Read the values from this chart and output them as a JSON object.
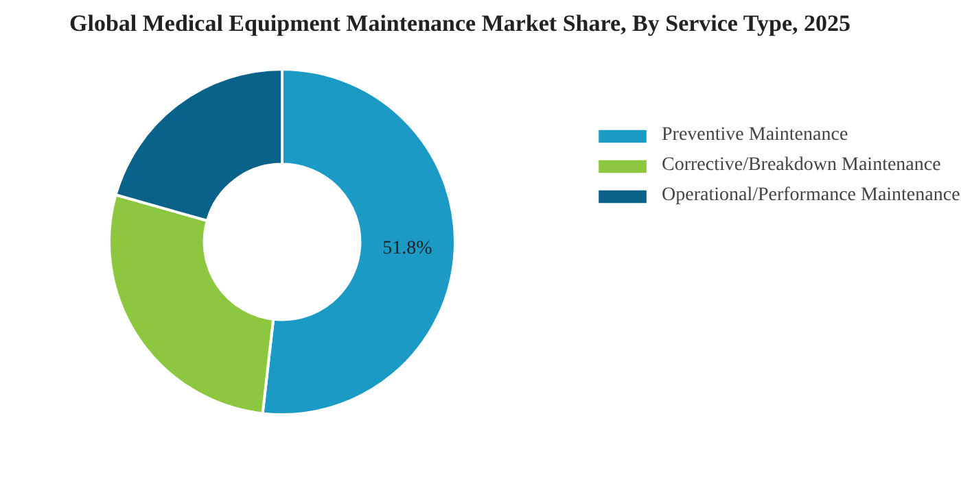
{
  "chart_data": {
    "type": "donut",
    "title": "Global Medical Equipment Maintenance Market Share, By Service Type, 2025",
    "categories": [
      "Preventive Maintenance",
      "Corrective/Breakdown Maintenance",
      "Operational/Performance Maintenance"
    ],
    "values": [
      51.8,
      27.6,
      20.6
    ],
    "colors": [
      "#1b9ac6",
      "#8dc63f",
      "#08628a"
    ],
    "value_labels": [
      "51.8%",
      null,
      null
    ],
    "legend": "right"
  }
}
